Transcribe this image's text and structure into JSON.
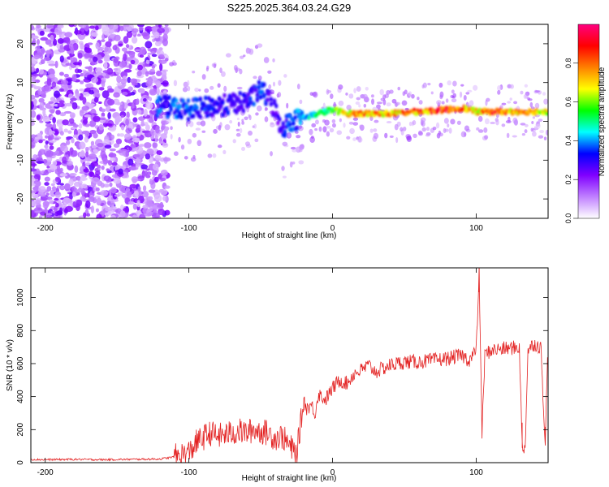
{
  "title": "S225.2025.364.03.24.G29",
  "chart_data": [
    {
      "type": "heatmap",
      "name": "spectrogram",
      "title": "S225.2025.364.03.24.G29",
      "xlabel": "Height of straight line (km)",
      "ylabel": "Frequency (Hz)",
      "xlim": [
        -210,
        150
      ],
      "ylim": [
        -25,
        25
      ],
      "xticks": [
        -200,
        -100,
        0,
        100
      ],
      "yticks": [
        -20,
        -10,
        0,
        10,
        20
      ],
      "colorbar": {
        "label": "Normalized spectral amplitude",
        "range": [
          0,
          1
        ],
        "ticks": [
          "0.0",
          "0.2",
          "0.4",
          "0.6",
          "0.8"
        ],
        "colors": [
          "#ffffff",
          "#c080ff",
          "#8000ff",
          "#0000ff",
          "#00ffff",
          "#00ff00",
          "#ffff00",
          "#ff8000",
          "#ff0000",
          "#ff0080"
        ]
      },
      "ridge": {
        "description": "dominant frequency track",
        "x": [
          -120,
          -100,
          -80,
          -60,
          -50,
          -45,
          -40,
          -35,
          -30,
          -20,
          -10,
          0,
          10,
          20,
          40,
          60,
          80,
          90,
          100,
          110,
          130,
          150
        ],
        "freq": [
          4,
          3,
          4,
          5,
          8,
          6,
          3,
          -2,
          0,
          1,
          2,
          3,
          2,
          2,
          2,
          2.5,
          3,
          3.5,
          2.5,
          2.5,
          2.5,
          2.5
        ],
        "amplitude": [
          0.35,
          0.35,
          0.3,
          0.3,
          0.35,
          0.3,
          0.25,
          0.3,
          0.35,
          0.4,
          0.5,
          0.55,
          0.7,
          0.8,
          0.75,
          0.8,
          0.85,
          0.8,
          0.7,
          0.85,
          0.75,
          0.65
        ]
      }
    },
    {
      "type": "line",
      "name": "snr",
      "xlabel": "Height of straight line (km)",
      "ylabel": "SNR (10 * v/v)",
      "xlim": [
        -210,
        150
      ],
      "ylim": [
        0,
        1180
      ],
      "xticks": [
        -200,
        -100,
        0,
        100
      ],
      "yticks": [
        0,
        200,
        400,
        600,
        800,
        1000
      ],
      "color": "#e32222",
      "series": [
        {
          "name": "SNR",
          "x": [
            -210,
            -200,
            -180,
            -160,
            -140,
            -120,
            -110,
            -100,
            -95,
            -90,
            -85,
            -80,
            -75,
            -70,
            -65,
            -60,
            -55,
            -50,
            -45,
            -40,
            -35,
            -30,
            -25,
            -22,
            -20,
            -18,
            -15,
            -12,
            -10,
            -5,
            0,
            5,
            10,
            15,
            20,
            25,
            30,
            40,
            50,
            60,
            70,
            80,
            90,
            95,
            100,
            102,
            104,
            106,
            110,
            120,
            130,
            132,
            134,
            136,
            138,
            140,
            145,
            148,
            150
          ],
          "y": [
            20,
            18,
            20,
            18,
            20,
            22,
            35,
            60,
            120,
            150,
            180,
            160,
            170,
            180,
            190,
            180,
            200,
            190,
            180,
            150,
            160,
            100,
            50,
            250,
            380,
            330,
            350,
            300,
            420,
            380,
            450,
            500,
            480,
            540,
            560,
            590,
            550,
            590,
            610,
            610,
            620,
            630,
            650,
            620,
            680,
            1150,
            180,
            650,
            680,
            690,
            700,
            90,
            90,
            680,
            700,
            720,
            700,
            120,
            740
          ]
        }
      ]
    }
  ]
}
